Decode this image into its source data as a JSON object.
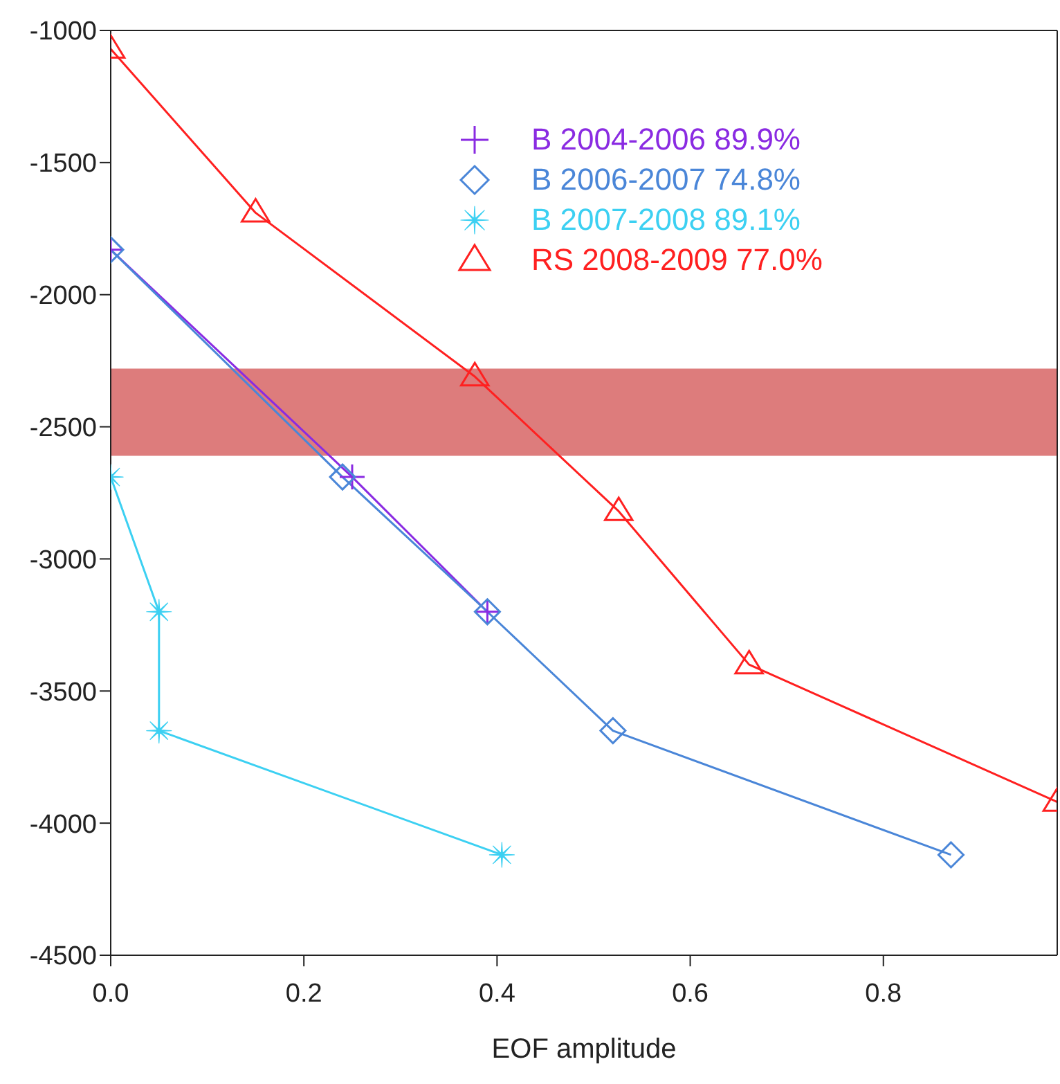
{
  "chart_data": {
    "type": "line",
    "xlabel": "EOF amplitude",
    "xlim": [
      0,
      0.98
    ],
    "xticks": [
      {
        "value": 0,
        "label": "0.0"
      },
      0.2,
      0.4,
      0.6,
      0.8
    ],
    "ylim": [
      -4500,
      -1000
    ],
    "yticks": [
      -4500,
      -4000,
      -3500,
      -3000,
      -2500,
      -2000,
      -1500,
      -1000
    ],
    "grid": false,
    "legend": "top right",
    "line_style": "solid",
    "bands": [
      {
        "axis": "y",
        "from": -2610,
        "to": -2280,
        "color": "#dd7c7c"
      }
    ],
    "series": [
      {
        "name": "B 2004-2006 89.9%",
        "color": "#8a2be2",
        "marker": "cross",
        "x": [
          0,
          0.25,
          0.39
        ],
        "values": [
          -1830,
          -2690,
          -3200
        ]
      },
      {
        "name": "B 2006-2007 74.8%",
        "color": "#4a86d8",
        "marker": "diamond",
        "x": [
          0,
          0.24,
          0.39,
          0.52,
          0.87
        ],
        "values": [
          -1830,
          -2690,
          -3200,
          -3650,
          -4120
        ]
      },
      {
        "name": "B 2007-2008 89.1%",
        "color": "#3cd0f2",
        "marker": "star",
        "x": [
          0,
          0.05,
          0.05,
          0.405
        ],
        "values": [
          -2690,
          -3200,
          -3650,
          -4120
        ]
      },
      {
        "name": "RS 2008-2009 77.0%",
        "color": "#ff2020",
        "marker": "triangle",
        "x": [
          0,
          0.15,
          0.377,
          0.526,
          0.661,
          0.98
        ],
        "values": [
          -1070,
          -1690,
          -2310,
          -2820,
          -3400,
          -3920
        ]
      }
    ]
  }
}
